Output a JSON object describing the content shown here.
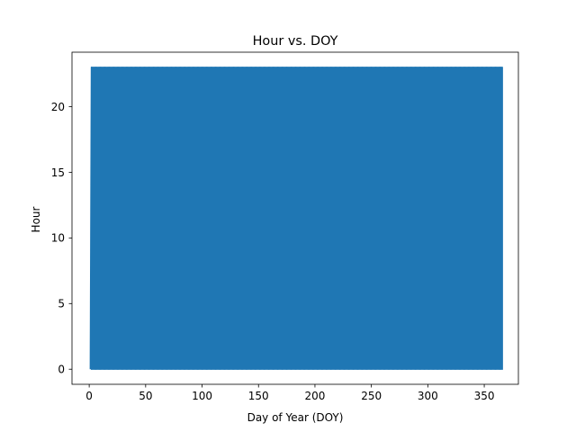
{
  "chart_data": {
    "type": "line",
    "title": "Hour vs. DOY",
    "xlabel": "Day of Year (DOY)",
    "ylabel": "Hour",
    "xlim": [
      -15.25,
      380.25
    ],
    "ylim": [
      -1.15,
      24.15
    ],
    "xticks": [
      0,
      50,
      100,
      150,
      200,
      250,
      300,
      350
    ],
    "yticks": [
      0,
      5,
      10,
      15,
      20
    ],
    "grid": false,
    "legend": "none",
    "series": [
      {
        "x_range": [
          1,
          366
        ],
        "y_range": [
          0,
          23
        ],
        "pattern": "hourly cycle 0-23 repeated for each day, drawn as a continuous line",
        "color": "#1f77b4"
      }
    ]
  }
}
